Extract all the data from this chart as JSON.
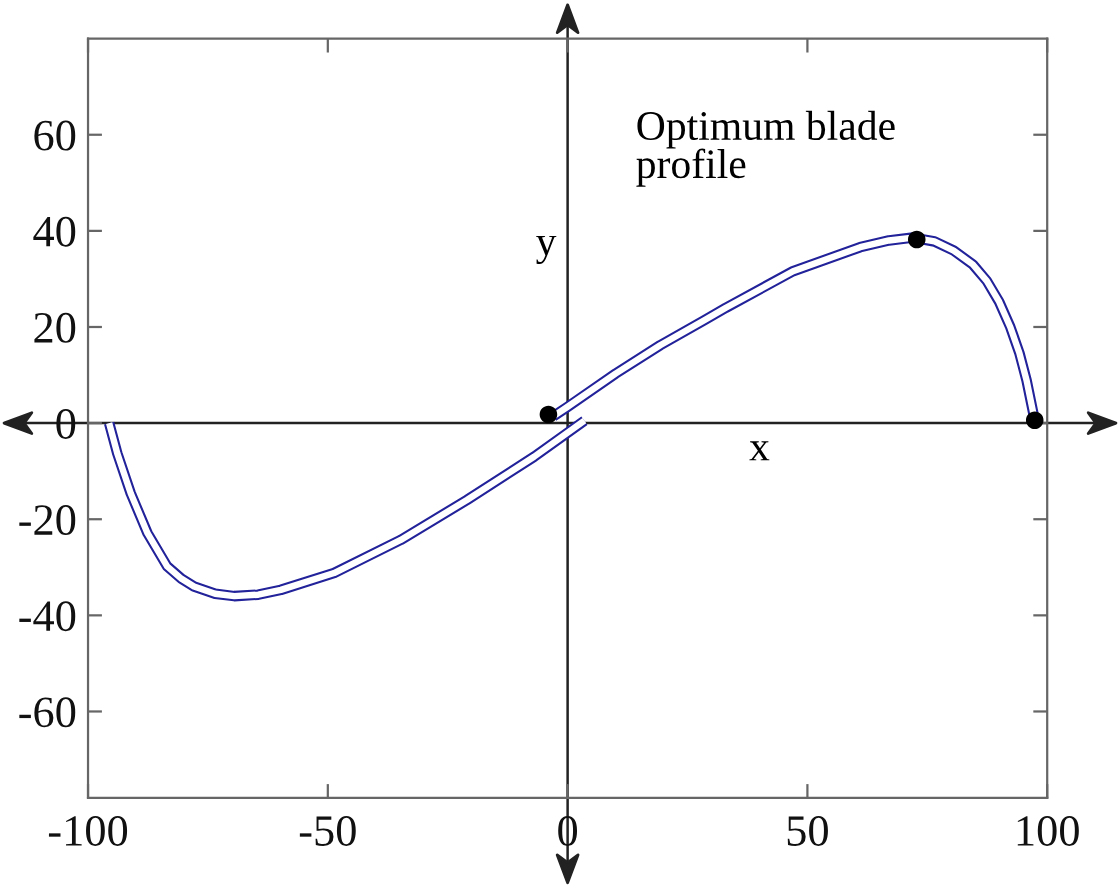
{
  "chart_data": {
    "type": "line",
    "annotations": [
      "Optimum blade\nprofile"
    ],
    "series": [
      {
        "color": "#22229a",
        "x": [
          -95.6,
          -93.9,
          -91.1,
          -87.6,
          -83.5,
          -80.5,
          -77.9,
          -73.5,
          -69.5,
          -64.5,
          -59.8,
          -48.7,
          -34.8,
          -21,
          -7,
          3.5
        ],
        "values": [
          0,
          -6.3,
          -14.6,
          -22.9,
          -29.8,
          -32.4,
          -34,
          -35.5,
          -36,
          -35.7,
          -34.7,
          -31.2,
          -24.3,
          -16,
          -7,
          0.5
        ]
      },
      {
        "color": "#22229a",
        "x": [
          -3,
          0,
          10,
          19.3,
          28.5,
          33,
          47,
          61,
          67,
          72,
          76.5,
          80.5,
          84.5,
          87.4,
          90,
          92.3,
          94.2,
          95.7,
          97.4
        ],
        "values": [
          1.4,
          3.4,
          10.3,
          16.2,
          21.4,
          24,
          31.6,
          36.6,
          38,
          38.6,
          37.8,
          35.9,
          33,
          29.6,
          25.2,
          20,
          14.6,
          8.9,
          0.6
        ]
      },
      {
        "type": "scatter",
        "color": "#000000",
        "marker": "circle",
        "x": [
          -4,
          72.8,
          97.4
        ],
        "values": [
          1.8,
          38.2,
          0.6
        ]
      }
    ],
    "xlim": [
      -100,
      100
    ],
    "ylim": [
      -78,
      80
    ],
    "xticks": [
      -100,
      -50,
      0,
      50,
      100
    ],
    "yticks": [
      -60,
      -40,
      -20,
      0,
      20,
      40,
      60
    ],
    "ref_lines": [
      {
        "axis": "y",
        "value": 0,
        "label": "x",
        "color": "#222222"
      },
      {
        "axis": "x",
        "value": 0,
        "label": "y",
        "color": "#222222"
      }
    ],
    "grid": false,
    "legend": false
  }
}
